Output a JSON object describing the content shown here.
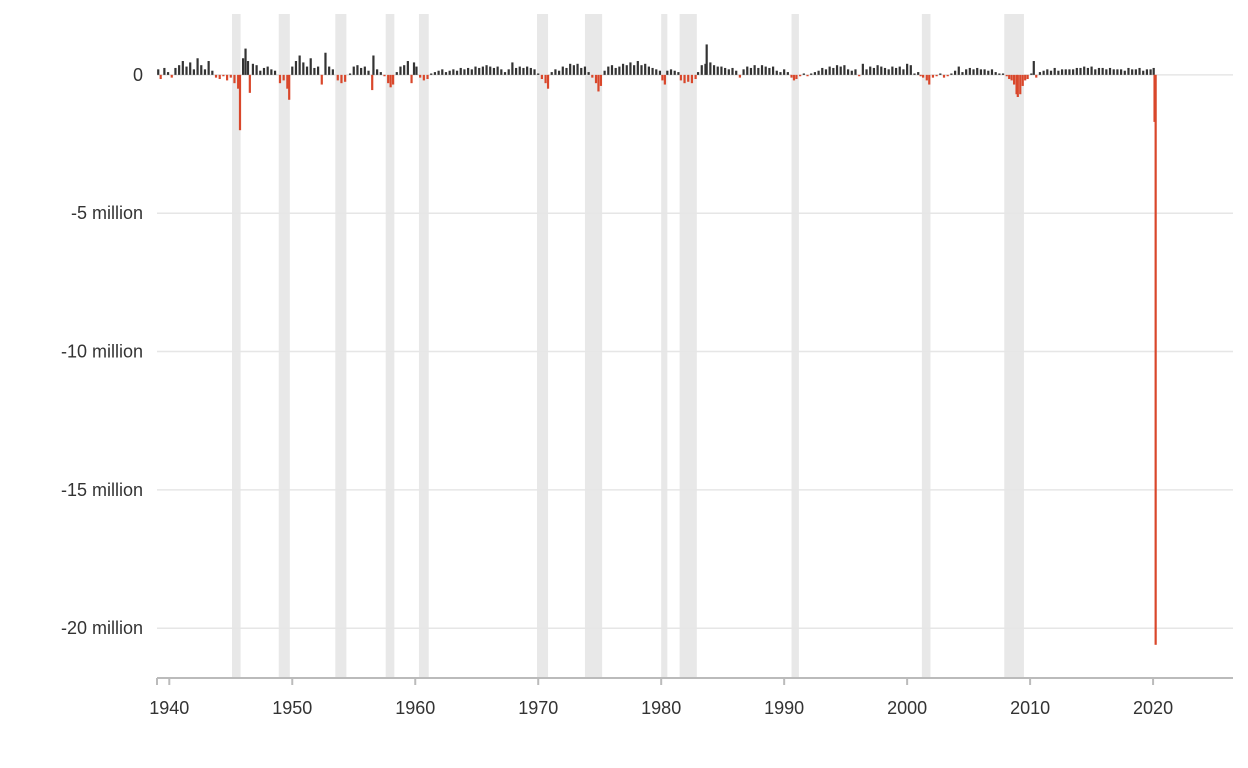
{
  "chart_data": {
    "type": "bar",
    "title": "",
    "xlabel": "",
    "ylabel": "",
    "grid": true,
    "xlim": [
      1939,
      2026.5
    ],
    "ylim": [
      -21.8,
      2.2
    ],
    "y_unit": "millions of jobs, monthly change",
    "x_ticks": [
      {
        "value": 1940,
        "label": "1940"
      },
      {
        "value": 1950,
        "label": "1950"
      },
      {
        "value": 1960,
        "label": "1960"
      },
      {
        "value": 1970,
        "label": "1970"
      },
      {
        "value": 1980,
        "label": "1980"
      },
      {
        "value": 1990,
        "label": "1990"
      },
      {
        "value": 2000,
        "label": "2000"
      },
      {
        "value": 2010,
        "label": "2010"
      },
      {
        "value": 2020,
        "label": "2020"
      }
    ],
    "y_ticks": [
      {
        "value": 0,
        "label": "0"
      },
      {
        "value": -5,
        "label": "-5 million"
      },
      {
        "value": -10,
        "label": "-10 million"
      },
      {
        "value": -15,
        "label": "-15 million"
      },
      {
        "value": -20,
        "label": "-20 million"
      }
    ],
    "colors": {
      "gain": "#333333",
      "loss": "#d9472b",
      "recession": "#e8e8e8",
      "grid": "#e6e6e6",
      "axis": "#bbbbbb"
    },
    "recessions": [
      [
        1945.1,
        1945.8
      ],
      [
        1948.9,
        1949.8
      ],
      [
        1953.5,
        1954.4
      ],
      [
        1957.6,
        1958.3
      ],
      [
        1960.3,
        1961.1
      ],
      [
        1969.9,
        1970.8
      ],
      [
        1973.8,
        1975.2
      ],
      [
        1980.0,
        1980.5
      ],
      [
        1981.5,
        1982.9
      ],
      [
        1990.6,
        1991.2
      ],
      [
        2001.2,
        2001.9
      ],
      [
        2007.9,
        2009.5
      ]
    ],
    "series": [
      {
        "values": [
          [
            1939.1,
            0.2
          ],
          [
            1939.3,
            -0.15
          ],
          [
            1939.6,
            0.25
          ],
          [
            1939.9,
            0.1
          ],
          [
            1940.2,
            -0.1
          ],
          [
            1940.5,
            0.25
          ],
          [
            1940.8,
            0.35
          ],
          [
            1941.1,
            0.5
          ],
          [
            1941.4,
            0.3
          ],
          [
            1941.7,
            0.45
          ],
          [
            1942.0,
            0.2
          ],
          [
            1942.3,
            0.6
          ],
          [
            1942.6,
            0.35
          ],
          [
            1942.9,
            0.2
          ],
          [
            1943.2,
            0.5
          ],
          [
            1943.5,
            0.15
          ],
          [
            1943.8,
            -0.1
          ],
          [
            1944.1,
            -0.15
          ],
          [
            1944.4,
            -0.05
          ],
          [
            1944.7,
            -0.2
          ],
          [
            1945.0,
            -0.1
          ],
          [
            1945.3,
            -0.3
          ],
          [
            1945.6,
            -0.5
          ],
          [
            1945.75,
            -2.0
          ],
          [
            1946.0,
            0.6
          ],
          [
            1946.2,
            0.95
          ],
          [
            1946.4,
            0.5
          ],
          [
            1946.55,
            -0.65
          ],
          [
            1946.8,
            0.4
          ],
          [
            1947.1,
            0.35
          ],
          [
            1947.4,
            0.15
          ],
          [
            1947.7,
            0.25
          ],
          [
            1948.0,
            0.3
          ],
          [
            1948.3,
            0.2
          ],
          [
            1948.6,
            0.15
          ],
          [
            1949.0,
            -0.3
          ],
          [
            1949.3,
            -0.2
          ],
          [
            1949.6,
            -0.5
          ],
          [
            1949.75,
            -0.9
          ],
          [
            1950.0,
            0.3
          ],
          [
            1950.3,
            0.5
          ],
          [
            1950.6,
            0.7
          ],
          [
            1950.9,
            0.45
          ],
          [
            1951.2,
            0.3
          ],
          [
            1951.5,
            0.6
          ],
          [
            1951.8,
            0.25
          ],
          [
            1952.1,
            0.3
          ],
          [
            1952.4,
            -0.35
          ],
          [
            1952.7,
            0.8
          ],
          [
            1953.0,
            0.3
          ],
          [
            1953.3,
            0.2
          ],
          [
            1953.7,
            -0.2
          ],
          [
            1954.0,
            -0.3
          ],
          [
            1954.3,
            -0.25
          ],
          [
            1954.7,
            0.05
          ],
          [
            1955.0,
            0.3
          ],
          [
            1955.3,
            0.35
          ],
          [
            1955.6,
            0.25
          ],
          [
            1955.9,
            0.3
          ],
          [
            1956.2,
            0.15
          ],
          [
            1956.5,
            -0.55
          ],
          [
            1956.6,
            0.7
          ],
          [
            1956.9,
            0.2
          ],
          [
            1957.2,
            0.1
          ],
          [
            1957.5,
            -0.05
          ],
          [
            1957.8,
            -0.3
          ],
          [
            1958.0,
            -0.45
          ],
          [
            1958.2,
            -0.35
          ],
          [
            1958.5,
            0.1
          ],
          [
            1958.8,
            0.3
          ],
          [
            1959.1,
            0.35
          ],
          [
            1959.4,
            0.5
          ],
          [
            1959.7,
            -0.3
          ],
          [
            1959.9,
            0.45
          ],
          [
            1960.1,
            0.3
          ],
          [
            1960.4,
            -0.1
          ],
          [
            1960.7,
            -0.2
          ],
          [
            1961.0,
            -0.15
          ],
          [
            1961.3,
            0.05
          ],
          [
            1961.6,
            0.1
          ],
          [
            1961.9,
            0.15
          ],
          [
            1962.2,
            0.2
          ],
          [
            1962.5,
            0.1
          ],
          [
            1962.8,
            0.15
          ],
          [
            1963.1,
            0.2
          ],
          [
            1963.4,
            0.15
          ],
          [
            1963.7,
            0.25
          ],
          [
            1964.0,
            0.2
          ],
          [
            1964.3,
            0.25
          ],
          [
            1964.6,
            0.2
          ],
          [
            1964.9,
            0.3
          ],
          [
            1965.2,
            0.25
          ],
          [
            1965.5,
            0.3
          ],
          [
            1965.8,
            0.35
          ],
          [
            1966.1,
            0.3
          ],
          [
            1966.4,
            0.25
          ],
          [
            1966.7,
            0.3
          ],
          [
            1967.0,
            0.2
          ],
          [
            1967.3,
            0.1
          ],
          [
            1967.6,
            0.2
          ],
          [
            1967.9,
            0.45
          ],
          [
            1968.2,
            0.25
          ],
          [
            1968.5,
            0.3
          ],
          [
            1968.8,
            0.25
          ],
          [
            1969.1,
            0.3
          ],
          [
            1969.4,
            0.25
          ],
          [
            1969.7,
            0.2
          ],
          [
            1970.0,
            0.05
          ],
          [
            1970.3,
            -0.15
          ],
          [
            1970.6,
            -0.3
          ],
          [
            1970.8,
            -0.5
          ],
          [
            1971.1,
            0.1
          ],
          [
            1971.4,
            0.2
          ],
          [
            1971.7,
            0.15
          ],
          [
            1972.0,
            0.3
          ],
          [
            1972.3,
            0.25
          ],
          [
            1972.6,
            0.4
          ],
          [
            1972.9,
            0.35
          ],
          [
            1973.2,
            0.4
          ],
          [
            1973.5,
            0.25
          ],
          [
            1973.8,
            0.3
          ],
          [
            1974.1,
            0.1
          ],
          [
            1974.4,
            -0.1
          ],
          [
            1974.7,
            -0.3
          ],
          [
            1974.9,
            -0.6
          ],
          [
            1975.1,
            -0.4
          ],
          [
            1975.4,
            0.15
          ],
          [
            1975.7,
            0.3
          ],
          [
            1976.0,
            0.35
          ],
          [
            1976.3,
            0.25
          ],
          [
            1976.6,
            0.3
          ],
          [
            1976.9,
            0.4
          ],
          [
            1977.2,
            0.35
          ],
          [
            1977.5,
            0.45
          ],
          [
            1977.8,
            0.35
          ],
          [
            1978.1,
            0.5
          ],
          [
            1978.4,
            0.35
          ],
          [
            1978.7,
            0.4
          ],
          [
            1979.0,
            0.3
          ],
          [
            1979.3,
            0.25
          ],
          [
            1979.6,
            0.2
          ],
          [
            1979.9,
            0.15
          ],
          [
            1980.1,
            -0.2
          ],
          [
            1980.3,
            -0.35
          ],
          [
            1980.5,
            0.15
          ],
          [
            1980.8,
            0.2
          ],
          [
            1981.1,
            0.15
          ],
          [
            1981.4,
            0.1
          ],
          [
            1981.6,
            -0.2
          ],
          [
            1981.9,
            -0.3
          ],
          [
            1982.2,
            -0.25
          ],
          [
            1982.5,
            -0.3
          ],
          [
            1982.8,
            -0.15
          ],
          [
            1983.0,
            0.1
          ],
          [
            1983.3,
            0.35
          ],
          [
            1983.6,
            0.4
          ],
          [
            1983.7,
            1.1
          ],
          [
            1984.0,
            0.45
          ],
          [
            1984.3,
            0.35
          ],
          [
            1984.6,
            0.3
          ],
          [
            1984.9,
            0.3
          ],
          [
            1985.2,
            0.25
          ],
          [
            1985.5,
            0.2
          ],
          [
            1985.8,
            0.25
          ],
          [
            1986.1,
            0.15
          ],
          [
            1986.4,
            -0.1
          ],
          [
            1986.7,
            0.2
          ],
          [
            1987.0,
            0.3
          ],
          [
            1987.3,
            0.25
          ],
          [
            1987.6,
            0.35
          ],
          [
            1987.9,
            0.25
          ],
          [
            1988.2,
            0.35
          ],
          [
            1988.5,
            0.3
          ],
          [
            1988.8,
            0.25
          ],
          [
            1989.1,
            0.3
          ],
          [
            1989.4,
            0.15
          ],
          [
            1989.7,
            0.1
          ],
          [
            1990.0,
            0.2
          ],
          [
            1990.3,
            0.1
          ],
          [
            1990.6,
            -0.1
          ],
          [
            1990.8,
            -0.2
          ],
          [
            1991.0,
            -0.15
          ],
          [
            1991.3,
            -0.05
          ],
          [
            1991.6,
            0.05
          ],
          [
            1991.9,
            -0.05
          ],
          [
            1992.2,
            0.05
          ],
          [
            1992.5,
            0.1
          ],
          [
            1992.8,
            0.15
          ],
          [
            1993.1,
            0.25
          ],
          [
            1993.4,
            0.2
          ],
          [
            1993.7,
            0.3
          ],
          [
            1994.0,
            0.25
          ],
          [
            1994.3,
            0.35
          ],
          [
            1994.6,
            0.3
          ],
          [
            1994.9,
            0.35
          ],
          [
            1995.2,
            0.2
          ],
          [
            1995.5,
            0.15
          ],
          [
            1995.8,
            0.2
          ],
          [
            1996.1,
            -0.05
          ],
          [
            1996.4,
            0.4
          ],
          [
            1996.7,
            0.2
          ],
          [
            1997.0,
            0.3
          ],
          [
            1997.3,
            0.25
          ],
          [
            1997.6,
            0.35
          ],
          [
            1997.9,
            0.3
          ],
          [
            1998.2,
            0.25
          ],
          [
            1998.5,
            0.2
          ],
          [
            1998.8,
            0.3
          ],
          [
            1999.1,
            0.25
          ],
          [
            1999.4,
            0.3
          ],
          [
            1999.7,
            0.2
          ],
          [
            2000.0,
            0.4
          ],
          [
            2000.3,
            0.35
          ],
          [
            2000.6,
            0.05
          ],
          [
            2000.9,
            0.1
          ],
          [
            2001.1,
            -0.05
          ],
          [
            2001.3,
            -0.1
          ],
          [
            2001.6,
            -0.2
          ],
          [
            2001.8,
            -0.35
          ],
          [
            2002.1,
            -0.1
          ],
          [
            2002.4,
            -0.05
          ],
          [
            2002.7,
            0.05
          ],
          [
            2003.0,
            -0.1
          ],
          [
            2003.3,
            -0.05
          ],
          [
            2003.6,
            0.05
          ],
          [
            2003.9,
            0.15
          ],
          [
            2004.2,
            0.3
          ],
          [
            2004.5,
            0.1
          ],
          [
            2004.8,
            0.2
          ],
          [
            2005.1,
            0.25
          ],
          [
            2005.4,
            0.2
          ],
          [
            2005.7,
            0.25
          ],
          [
            2006.0,
            0.2
          ],
          [
            2006.3,
            0.2
          ],
          [
            2006.6,
            0.15
          ],
          [
            2006.9,
            0.2
          ],
          [
            2007.2,
            0.1
          ],
          [
            2007.5,
            0.05
          ],
          [
            2007.8,
            0.05
          ],
          [
            2008.1,
            -0.05
          ],
          [
            2008.3,
            -0.15
          ],
          [
            2008.5,
            -0.2
          ],
          [
            2008.7,
            -0.35
          ],
          [
            2008.9,
            -0.7
          ],
          [
            2009.0,
            -0.8
          ],
          [
            2009.2,
            -0.7
          ],
          [
            2009.4,
            -0.4
          ],
          [
            2009.6,
            -0.2
          ],
          [
            2009.8,
            -0.15
          ],
          [
            2010.1,
            0.05
          ],
          [
            2010.3,
            0.5
          ],
          [
            2010.5,
            -0.1
          ],
          [
            2010.8,
            0.1
          ],
          [
            2011.1,
            0.15
          ],
          [
            2011.4,
            0.2
          ],
          [
            2011.7,
            0.15
          ],
          [
            2012.0,
            0.25
          ],
          [
            2012.3,
            0.15
          ],
          [
            2012.6,
            0.2
          ],
          [
            2012.9,
            0.2
          ],
          [
            2013.2,
            0.2
          ],
          [
            2013.5,
            0.2
          ],
          [
            2013.8,
            0.25
          ],
          [
            2014.1,
            0.25
          ],
          [
            2014.4,
            0.3
          ],
          [
            2014.7,
            0.25
          ],
          [
            2015.0,
            0.3
          ],
          [
            2015.3,
            0.2
          ],
          [
            2015.6,
            0.25
          ],
          [
            2015.9,
            0.25
          ],
          [
            2016.2,
            0.2
          ],
          [
            2016.5,
            0.25
          ],
          [
            2016.8,
            0.2
          ],
          [
            2017.1,
            0.2
          ],
          [
            2017.4,
            0.2
          ],
          [
            2017.7,
            0.15
          ],
          [
            2018.0,
            0.25
          ],
          [
            2018.3,
            0.2
          ],
          [
            2018.6,
            0.2
          ],
          [
            2018.9,
            0.25
          ],
          [
            2019.2,
            0.15
          ],
          [
            2019.5,
            0.2
          ],
          [
            2019.8,
            0.2
          ],
          [
            2020.05,
            0.25
          ],
          [
            2020.12,
            -1.7
          ],
          [
            2020.21,
            -20.6
          ]
        ]
      }
    ]
  }
}
